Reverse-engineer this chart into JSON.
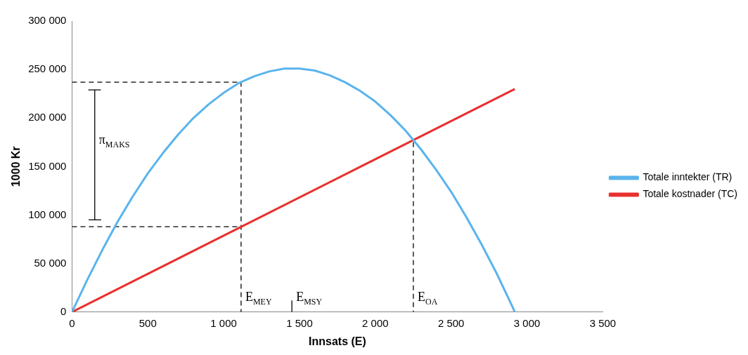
{
  "chart_data": {
    "type": "line",
    "xlabel": "Innsats (E)",
    "ylabel": "1000 Kr",
    "xlim": [
      0,
      3500
    ],
    "ylim": [
      0,
      300000
    ],
    "xticks": [
      0,
      500,
      {
        "value": 1000,
        "label": "1 000"
      },
      {
        "value": 1500,
        "label": "1 500"
      },
      {
        "value": 2000,
        "label": "2 000"
      },
      {
        "value": 2500,
        "label": "2 500"
      },
      {
        "value": 3000,
        "label": "3 000"
      },
      {
        "value": 3500,
        "label": "3 500"
      }
    ],
    "yticks": [
      0,
      {
        "value": 50000,
        "label": "50 000"
      },
      {
        "value": 100000,
        "label": "100 000"
      },
      {
        "value": 150000,
        "label": "150 000"
      },
      {
        "value": 200000,
        "label": "200 000"
      },
      {
        "value": 250000,
        "label": "250 000"
      },
      {
        "value": 300000,
        "label": "300 000"
      }
    ],
    "grid": false,
    "legend": "right",
    "marker": "none",
    "series": [
      {
        "name": "Totale inntekter (TR)",
        "color": "#5ab4ec",
        "x": [
          0,
          100,
          200,
          300,
          400,
          500,
          600,
          700,
          800,
          900,
          1000,
          1100,
          1200,
          1300,
          1400,
          1500,
          1600,
          1700,
          1800,
          1900,
          2000,
          2100,
          2200,
          2300,
          2400,
          2500,
          2600,
          2700,
          2800,
          2900,
          2920
        ],
        "values": [
          0,
          33000,
          64000,
          93000,
          119000,
          143000,
          164000,
          183000,
          200000,
          214000,
          226000,
          236000,
          243000,
          248000,
          251000,
          251000,
          249000,
          244000,
          237000,
          228000,
          217000,
          203000,
          187000,
          168000,
          147000,
          124000,
          98000,
          70000,
          40000,
          7000,
          0
        ]
      },
      {
        "name": "Totale kostnader (TC)",
        "color": "#e8312f",
        "x": [
          0,
          2920
        ],
        "values": [
          0,
          230000
        ]
      },
      {
        "type": "line",
        "color": "#000000",
        "line_style": "dashed",
        "x": [
          0,
          1115,
          1115
        ],
        "values": [
          237000,
          237000,
          0
        ]
      },
      {
        "type": "line",
        "color": "#000000",
        "line_style": "dashed",
        "x": [
          0,
          1115
        ],
        "values": [
          88000,
          88000
        ]
      },
      {
        "type": "line",
        "color": "#000000",
        "line_style": "dashed",
        "x": [
          2251,
          2251
        ],
        "values": [
          175000,
          0
        ]
      },
      {
        "type": "line",
        "color": "#000000",
        "line_style": "solid",
        "x": [
          1450,
          1450
        ],
        "values": [
          0,
          12000
        ]
      },
      {
        "type": "line",
        "color": "#000000",
        "line_style": "solid",
        "x": [
          110,
          190,
          150,
          150,
          110,
          190
        ],
        "values": [
          95000,
          95000,
          95000,
          229000,
          229000,
          229000
        ]
      }
    ],
    "annotations": [
      {
        "text": "E$_{MEY}$",
        "x": 1115,
        "y": 0
      },
      {
        "text": "E$_{MSY}$",
        "x": 1450,
        "y": 0
      },
      {
        "text": "E$_{OA}$",
        "x": 2251,
        "y": 0
      },
      {
        "text": "π$_{MAKS}$",
        "x": 150,
        "y": 162000
      }
    ]
  }
}
